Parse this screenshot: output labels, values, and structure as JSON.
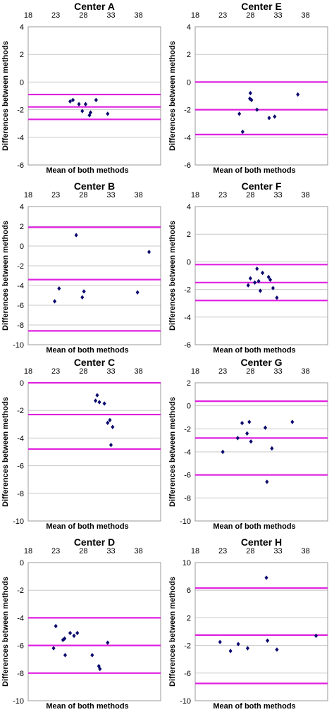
{
  "figure_label": "Bland-Altman plots",
  "colors": {
    "limit_line": "#e020e0",
    "point": "#0a0a6e",
    "gridline": "#c8c8c8",
    "frame": "#999999"
  },
  "chart_data": [
    {
      "type": "scatter",
      "title": "Center A",
      "xlabel": "Mean of both methods",
      "ylabel": "Differences between methods",
      "xticks": [
        "18",
        "23",
        "28",
        "33",
        "38"
      ],
      "yticks": [
        "4",
        "2",
        "0",
        "-2",
        "-4",
        "-6"
      ],
      "xlim": [
        18,
        42
      ],
      "ylim": [
        -6,
        4
      ],
      "hlines": [
        -0.9,
        -1.8,
        -2.7
      ],
      "x": [
        25.6,
        26.1,
        27.2,
        27.8,
        28.4,
        29.1,
        29.3,
        30.3,
        32.4
      ],
      "y": [
        -1.4,
        -1.3,
        -1.6,
        -2.1,
        -1.6,
        -2.4,
        -2.2,
        -1.3,
        -2.3
      ]
    },
    {
      "type": "scatter",
      "title": "Center E",
      "xlabel": "Mean of both methods",
      "ylabel": "Differences between methods",
      "xticks": [
        "18",
        "23",
        "28",
        "33",
        "38"
      ],
      "yticks": [
        "4",
        "2",
        "0",
        "-2",
        "-4",
        "-6"
      ],
      "xlim": [
        18,
        42
      ],
      "ylim": [
        -6,
        4
      ],
      "hlines": [
        0.0,
        -2.0,
        -3.8
      ],
      "x": [
        26.0,
        26.6,
        27.9,
        28.0,
        28.2,
        29.2,
        31.4,
        32.4,
        36.6
      ],
      "y": [
        -2.3,
        -3.6,
        -1.2,
        -0.8,
        -1.3,
        -2.0,
        -2.6,
        -2.5,
        -0.9
      ]
    },
    {
      "type": "scatter",
      "title": "Center B",
      "xlabel": "Mean of both methods",
      "ylabel": "Differences between methods",
      "xticks": [
        "18",
        "23",
        "28",
        "33",
        "38"
      ],
      "yticks": [
        "4",
        "2",
        "0",
        "-2",
        "-4",
        "-6",
        "-8",
        "-10"
      ],
      "xlim": [
        18,
        42
      ],
      "ylim": [
        -10,
        4
      ],
      "hlines": [
        1.9,
        -3.4,
        -8.6
      ],
      "x": [
        22.8,
        23.6,
        26.7,
        27.8,
        28.1,
        37.8,
        39.9
      ],
      "y": [
        -5.6,
        -4.3,
        1.1,
        -5.2,
        -4.6,
        -4.7,
        -0.6
      ]
    },
    {
      "type": "scatter",
      "title": "Center F",
      "xlabel": "Mean of both methods",
      "ylabel": "Differences between methods",
      "xticks": [
        "18",
        "23",
        "28",
        "33",
        "38"
      ],
      "yticks": [
        "4",
        "2",
        "0",
        "-2",
        "-4",
        "-6"
      ],
      "xlim": [
        18,
        42
      ],
      "ylim": [
        -6,
        4
      ],
      "hlines": [
        -0.2,
        -1.5,
        -2.8
      ],
      "x": [
        27.6,
        28.0,
        28.8,
        29.2,
        29.5,
        29.8,
        30.2,
        31.3,
        31.6,
        32.1,
        32.8
      ],
      "y": [
        -1.7,
        -1.2,
        -1.5,
        -0.5,
        -1.4,
        -2.1,
        -0.8,
        -1.1,
        -1.3,
        -1.9,
        -2.6
      ]
    },
    {
      "type": "scatter",
      "title": "Center C",
      "xlabel": "Mean of both methods",
      "ylabel": "Differences between methods",
      "xticks": [
        "18",
        "23",
        "28",
        "33",
        "38"
      ],
      "yticks": [
        "0",
        "-2",
        "-4",
        "-6",
        "-8",
        "-10"
      ],
      "xlim": [
        18,
        42
      ],
      "ylim": [
        -10,
        0
      ],
      "hlines": [
        0.0,
        -2.3,
        -4.8
      ],
      "x": [
        30.2,
        30.5,
        30.9,
        31.8,
        32.4,
        32.8,
        33.0,
        33.3
      ],
      "y": [
        -1.3,
        -0.9,
        -1.4,
        -1.5,
        -2.9,
        -2.7,
        -4.5,
        -3.2
      ]
    },
    {
      "type": "scatter",
      "title": "Center G",
      "xlabel": "Mean of both methods",
      "ylabel": "Differences between methods",
      "xticks": [
        "18",
        "23",
        "28",
        "33",
        "38"
      ],
      "yticks": [
        "2",
        "0",
        "-2",
        "-4",
        "-6",
        "-8",
        "-10"
      ],
      "xlim": [
        18,
        42
      ],
      "ylim": [
        -10,
        2
      ],
      "hlines": [
        0.4,
        -2.8,
        -6.0
      ],
      "x": [
        23.0,
        25.7,
        26.5,
        27.4,
        27.8,
        28.1,
        30.7,
        31.0,
        31.9,
        35.6
      ],
      "y": [
        -4.0,
        -2.8,
        -1.5,
        -2.4,
        -1.4,
        -3.1,
        -1.9,
        -6.6,
        -3.7,
        -1.4
      ]
    },
    {
      "type": "scatter",
      "title": "Center D",
      "xlabel": "Mean of both methods",
      "ylabel": "Differences between methods",
      "xticks": [
        "18",
        "23",
        "28",
        "33",
        "38"
      ],
      "yticks": [
        "0",
        "-2",
        "-4",
        "-6",
        "-8",
        "-10"
      ],
      "xlim": [
        18,
        42
      ],
      "ylim": [
        -10,
        0
      ],
      "hlines": [
        -4.0,
        -6.0,
        -8.0
      ],
      "x": [
        22.6,
        23.0,
        24.3,
        24.6,
        24.7,
        25.6,
        26.3,
        26.9,
        29.6,
        30.8,
        31.0,
        32.4
      ],
      "y": [
        -6.2,
        -4.6,
        -5.6,
        -5.5,
        -6.7,
        -5.1,
        -5.3,
        -5.1,
        -6.7,
        -7.5,
        -7.7,
        -5.8
      ]
    },
    {
      "type": "scatter",
      "title": "Center H",
      "xlabel": "Mean of both methods",
      "ylabel": "Differences between methods",
      "xticks": [
        "18",
        "23",
        "28",
        "33",
        "38"
      ],
      "yticks": [
        "10",
        "6",
        "2",
        "-2",
        "-6",
        "-10"
      ],
      "xlim": [
        18,
        42
      ],
      "ylim": [
        -10,
        10
      ],
      "hlines": [
        6.3,
        -0.5,
        -7.5
      ],
      "x": [
        22.5,
        24.4,
        25.8,
        27.5,
        30.9,
        31.1,
        32.8,
        39.9
      ],
      "y": [
        -1.5,
        -2.8,
        -1.8,
        -2.4,
        7.8,
        -1.3,
        -2.6,
        -0.6
      ]
    }
  ]
}
